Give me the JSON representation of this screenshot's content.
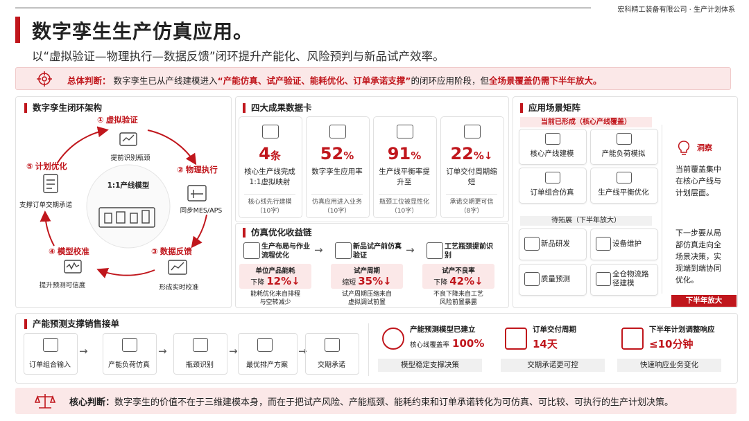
{
  "header": {
    "company": "宏科精工装备有限公司 · 生产计划体系",
    "title": "数字孪生生产仿真应用。",
    "subtitle": "以“虚拟验证—物理执行—数据反馈”闭环提升产能化、风险预判与新品试产效率。"
  },
  "summary": {
    "label": "总体判断：",
    "text1": "数字孪生已从产线建模进入",
    "highlight1": "“产能仿真、试产验证、能耗优化、订单承诺支撑”",
    "text2": "的闭环应用阶段，但",
    "highlight2": "全场景覆盖仍需下半年放大。"
  },
  "loop": {
    "title": "数字孪生闭环架构",
    "center": "1:1产线模型",
    "steps": [
      {
        "num": "①",
        "name": "虚拟验证",
        "desc": "提前识别瓶颈"
      },
      {
        "num": "②",
        "name": "物理执行",
        "desc": "同步MES/APS"
      },
      {
        "num": "③",
        "name": "数据反馈",
        "desc": "形成实时校准"
      },
      {
        "num": "④",
        "name": "模型校准",
        "desc": "提升预测可信度"
      },
      {
        "num": "⑤",
        "name": "计划优化",
        "desc": "支撑订单交期承诺"
      }
    ]
  },
  "cards": {
    "title": "四大成果数据卡",
    "items": [
      {
        "value": "4",
        "unit": "条",
        "label": "核心生产线完成1:1虚拟映射",
        "note": "核心线先行建模",
        "count": "（10字）"
      },
      {
        "value": "52",
        "unit": "%",
        "label": "数字孪生应用率",
        "note": "仿真应用进入业务",
        "count": "（10字）"
      },
      {
        "value": "91",
        "unit": "%",
        "label": "生产线平衡率提升至",
        "note": "瓶颈工位被显性化",
        "count": "（10字）"
      },
      {
        "value": "22",
        "unit": "%↓",
        "label": "订单交付周期缩短",
        "note": "承诺交期更可信",
        "count": "（8字）"
      }
    ]
  },
  "chain": {
    "title": "仿真优化收益链",
    "items": [
      {
        "name": "生产布局与作业流程优化",
        "metric_label": "单位产品能耗",
        "verb": "下降",
        "metric": "12%↓",
        "desc": "能耗优化来自排程与空转减少"
      },
      {
        "name": "新品试产前仿真验证",
        "metric_label": "试产周期",
        "verb": "缩短",
        "metric": "35%↓",
        "desc": "试产周期压缩来自虚拟调试前置"
      },
      {
        "name": "工艺瓶颈提前识别",
        "metric_label": "试产不良率",
        "verb": "下降",
        "metric": "42%↓",
        "desc": "不良下降来自工艺风险前置暴露"
      }
    ]
  },
  "matrix": {
    "title": "应用场景矩阵",
    "formed_label": "当前已形成（核心产线覆盖）",
    "formed": [
      "核心产线建模",
      "产能负荷模拟",
      "订单组合仿真",
      "生产线平衡优化"
    ],
    "expand_label": "待拓展（下半年放大）",
    "expand": [
      "新品研发",
      "设备维护",
      "质量预测",
      "全仓物流路径建模"
    ],
    "insight_title": "洞察",
    "insight1": "当前覆盖集中在核心产线与计划层面。",
    "insight2": "下一步要从局部仿真走向全场景决策，实现端到端协同优化。",
    "tag": "下半年放大"
  },
  "sales": {
    "title": "产能预测支撑销售接单",
    "steps": [
      "订单组合输入",
      "产能负荷仿真",
      "瓶颈识别",
      "最优排产方案",
      "交期承诺"
    ],
    "kpis": [
      {
        "title": "产能预测模型已建立",
        "sub": "核心线覆盖率",
        "value": "100%",
        "foot": "模型稳定支撑决策"
      },
      {
        "title": "订单交付周期",
        "sub": "",
        "value": "14天",
        "foot": "交期承诺更可控"
      },
      {
        "title": "下半年计划调整响应",
        "sub": "",
        "value": "≤10分钟",
        "foot": "快速响应业务变化"
      }
    ]
  },
  "core": {
    "label": "核心判断：",
    "text": "数字孪生的价值不在于三维建模本身，而在于把试产风险、产能瓶颈、能耗约束和订单承诺转化为可仿真、可比较、可执行的生产计划决策。"
  }
}
